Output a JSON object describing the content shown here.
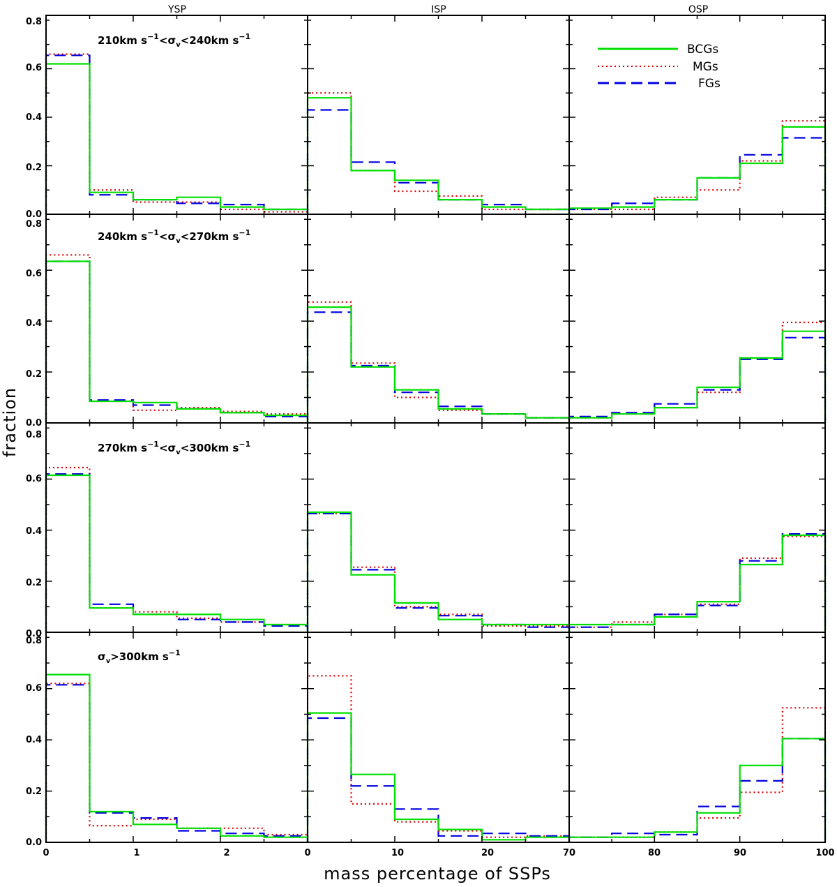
{
  "chart_data": {
    "type": "histogram-grid",
    "xlabel": "mass percentage of SSPs",
    "ylabel": "fraction",
    "columns": [
      {
        "title": "YSP",
        "xlim": [
          0,
          3
        ],
        "xticks": [
          0,
          1,
          2
        ],
        "bins": [
          0,
          0.5,
          1.0,
          1.5,
          2.0,
          2.5,
          3.0
        ]
      },
      {
        "title": "ISP",
        "xlim": [
          0,
          30
        ],
        "xticks": [
          0,
          10,
          20
        ],
        "bins": [
          0,
          5,
          10,
          15,
          20,
          25,
          30
        ]
      },
      {
        "title": "OSP",
        "xlim": [
          70,
          100
        ],
        "xticks": [
          70,
          80,
          90,
          100
        ],
        "bins": [
          70,
          75,
          80,
          85,
          90,
          95,
          100
        ]
      }
    ],
    "bottom_tick_labels": [
      "0",
      "1",
      "2",
      "0",
      "10",
      "20",
      "70",
      "80",
      "90",
      "100"
    ],
    "ylim": [
      0,
      0.82
    ],
    "yticks": [
      0.0,
      0.2,
      0.4,
      0.6,
      0.8
    ],
    "ytick_labels": [
      "0.0",
      "0.2",
      "0.4",
      "0.6",
      "0.8"
    ],
    "legend": {
      "position": "top-right",
      "entries": [
        {
          "name": "BCGs",
          "style": "solid",
          "color": "#00e000"
        },
        {
          "name": "MGs",
          "style": "dotted",
          "color": "#e00000"
        },
        {
          "name": "FGs",
          "style": "dashed",
          "color": "#0000e0"
        }
      ]
    },
    "rows": [
      {
        "label_prefix": "210km s",
        "label_mid": "<",
        "label_suffix": "<240km s",
        "panels": [
          {
            "BCGs": [
              0.62,
              0.09,
              0.06,
              0.07,
              0.03,
              0.02
            ],
            "MGs": [
              0.66,
              0.1,
              0.05,
              0.05,
              0.02,
              0.01
            ],
            "FGs": [
              0.655,
              0.08,
              0.06,
              0.045,
              0.04,
              0.02
            ]
          },
          {
            "BCGs": [
              0.48,
              0.18,
              0.14,
              0.06,
              0.03,
              0.02
            ],
            "MGs": [
              0.5,
              0.18,
              0.095,
              0.075,
              0.02,
              0.02
            ],
            "FGs": [
              0.43,
              0.215,
              0.13,
              0.06,
              0.04,
              0.02
            ]
          },
          {
            "BCGs": [
              0.025,
              0.03,
              0.06,
              0.15,
              0.21,
              0.36
            ],
            "MGs": [
              0.02,
              0.02,
              0.07,
              0.1,
              0.22,
              0.385
            ],
            "FGs": [
              0.02,
              0.045,
              0.06,
              0.15,
              0.245,
              0.315
            ]
          }
        ]
      },
      {
        "label_prefix": "240km s",
        "label_mid": "<",
        "label_suffix": "<270km s",
        "panels": [
          {
            "BCGs": [
              0.635,
              0.085,
              0.08,
              0.055,
              0.04,
              0.03
            ],
            "MGs": [
              0.66,
              0.085,
              0.05,
              0.06,
              0.045,
              0.035
            ],
            "FGs": [
              0.635,
              0.09,
              0.07,
              0.055,
              0.04,
              0.025
            ]
          },
          {
            "BCGs": [
              0.455,
              0.22,
              0.13,
              0.055,
              0.035,
              0.02
            ],
            "MGs": [
              0.475,
              0.235,
              0.1,
              0.05,
              0.035,
              0.02
            ],
            "FGs": [
              0.435,
              0.225,
              0.12,
              0.065,
              0.035,
              0.02
            ]
          },
          {
            "BCGs": [
              0.02,
              0.035,
              0.06,
              0.14,
              0.255,
              0.36
            ],
            "MGs": [
              0.02,
              0.035,
              0.06,
              0.12,
              0.255,
              0.395
            ],
            "FGs": [
              0.025,
              0.04,
              0.075,
              0.13,
              0.25,
              0.335
            ]
          }
        ]
      },
      {
        "label_prefix": "270km s",
        "label_mid": "<",
        "label_suffix": "<300km s",
        "panels": [
          {
            "BCGs": [
              0.615,
              0.095,
              0.07,
              0.07,
              0.05,
              0.03
            ],
            "MGs": [
              0.645,
              0.095,
              0.08,
              0.055,
              0.04,
              0.03
            ],
            "FGs": [
              0.62,
              0.11,
              0.07,
              0.05,
              0.04,
              0.025
            ]
          },
          {
            "BCGs": [
              0.47,
              0.225,
              0.115,
              0.05,
              0.03,
              0.03
            ],
            "MGs": [
              0.465,
              0.255,
              0.1,
              0.07,
              0.025,
              0.025
            ],
            "FGs": [
              0.465,
              0.245,
              0.095,
              0.065,
              0.03,
              0.02
            ]
          },
          {
            "BCGs": [
              0.03,
              0.03,
              0.06,
              0.12,
              0.265,
              0.38
            ],
            "MGs": [
              0.02,
              0.04,
              0.07,
              0.11,
              0.29,
              0.375
            ],
            "FGs": [
              0.02,
              0.03,
              0.07,
              0.105,
              0.28,
              0.385
            ]
          }
        ]
      },
      {
        "label_prefix": "",
        "label_mid": ">300km s",
        "label_suffix": "",
        "panels": [
          {
            "BCGs": [
              0.655,
              0.12,
              0.07,
              0.055,
              0.025,
              0.02
            ],
            "MGs": [
              0.62,
              0.065,
              0.09,
              0.055,
              0.055,
              0.03
            ],
            "FGs": [
              0.615,
              0.115,
              0.095,
              0.045,
              0.035,
              0.025
            ]
          },
          {
            "BCGs": [
              0.505,
              0.265,
              0.09,
              0.05,
              0.01,
              0.02
            ],
            "MGs": [
              0.65,
              0.15,
              0.08,
              0.045,
              0.02,
              0.025
            ],
            "FGs": [
              0.485,
              0.22,
              0.13,
              0.025,
              0.035,
              0.025
            ]
          },
          {
            "BCGs": [
              0.02,
              0.02,
              0.04,
              0.115,
              0.3,
              0.405
            ],
            "MGs": [
              0.02,
              0.02,
              0.04,
              0.095,
              0.195,
              0.525
            ],
            "FGs": [
              0.02,
              0.035,
              0.03,
              0.14,
              0.24,
              0.405
            ]
          }
        ]
      }
    ]
  }
}
